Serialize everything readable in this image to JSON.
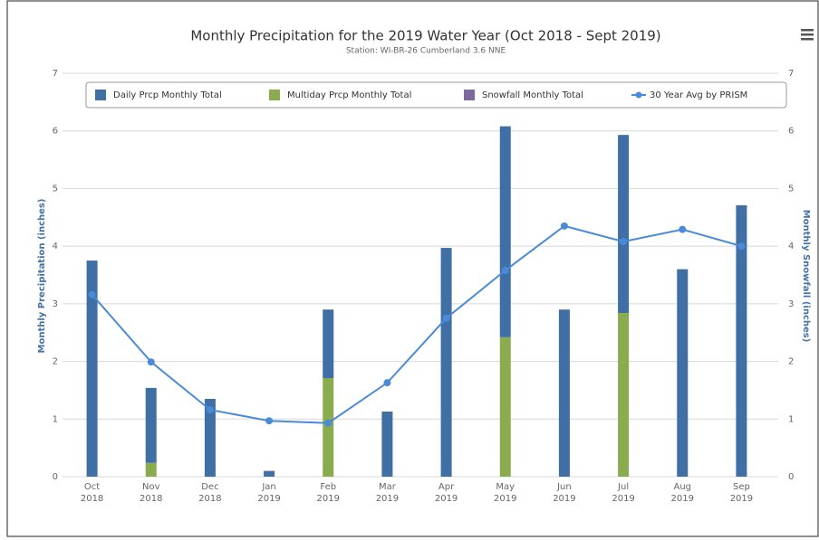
{
  "chart_data": {
    "type": "bar",
    "title": "Monthly Precipitation for the 2019 Water Year (Oct 2018 - Sept 2019)",
    "subtitle": "Station: WI-BR-26 Cumberland 3.6 NNE",
    "ylabel": "Monthly Precipitation (inches)",
    "y2label": "Monthly Snowfall (inches)",
    "categories": [
      [
        "Oct",
        "2018"
      ],
      [
        "Nov",
        "2018"
      ],
      [
        "Dec",
        "2018"
      ],
      [
        "Jan",
        "2019"
      ],
      [
        "Feb",
        "2019"
      ],
      [
        "Mar",
        "2019"
      ],
      [
        "Apr",
        "2019"
      ],
      [
        "May",
        "2019"
      ],
      [
        "Jun",
        "2019"
      ],
      [
        "Jul",
        "2019"
      ],
      [
        "Aug",
        "2019"
      ],
      [
        "Sep",
        "2019"
      ]
    ],
    "series": [
      {
        "name": "Multiday Prcp Monthly Total",
        "color": "#8bab4f",
        "kind": "bar",
        "values": [
          0,
          0.24,
          0,
          0,
          1.71,
          0,
          0,
          2.42,
          0,
          2.84,
          0,
          0
        ]
      },
      {
        "name": "Daily Prcp Monthly Total",
        "color": "#3f6fa5",
        "kind": "bar",
        "values": [
          3.75,
          1.3,
          1.35,
          0.1,
          1.19,
          1.13,
          3.97,
          3.66,
          2.9,
          3.09,
          3.6,
          4.71
        ]
      },
      {
        "name": "Snowfall Monthly Total",
        "color": "#7e6a9e",
        "kind": "bar",
        "axis": "y2",
        "values": [
          null,
          null,
          null,
          null,
          null,
          null,
          null,
          null,
          null,
          null,
          null,
          null
        ]
      },
      {
        "name": "30 Year Avg by PRISM",
        "color": "#4a8ad8",
        "kind": "line",
        "values": [
          3.16,
          1.99,
          1.16,
          0.97,
          0.93,
          1.63,
          2.75,
          3.58,
          4.35,
          4.08,
          4.29,
          4.0
        ]
      }
    ],
    "legend_order": [
      1,
      0,
      2,
      3
    ],
    "ylim": [
      0,
      7
    ],
    "yticks": [
      0,
      1,
      2,
      3,
      4,
      5,
      6,
      7
    ],
    "y2lim": [
      0,
      7
    ],
    "y2ticks": [
      0,
      1,
      2,
      3,
      4,
      5,
      6,
      7
    ],
    "grid": true
  }
}
